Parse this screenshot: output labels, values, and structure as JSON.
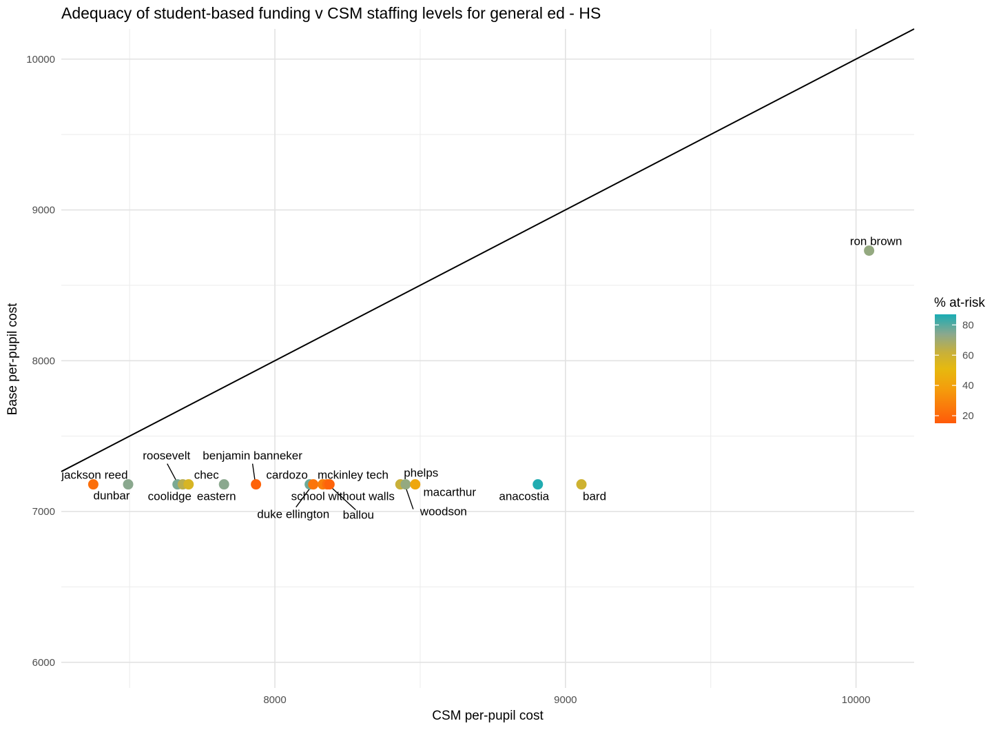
{
  "chart_data": {
    "type": "scatter",
    "title": "Adequacy of student-based funding v CSM staffing levels for general ed - HS",
    "xlabel": "CSM per-pupil cost",
    "ylabel": "Base per-pupil cost",
    "xlim": [
      7265,
      10200
    ],
    "ylim": [
      5830,
      10200
    ],
    "x_ticks": [
      8000,
      9000,
      10000
    ],
    "y_ticks": [
      6000,
      7000,
      8000,
      9000,
      10000
    ],
    "reference_line": "y = x",
    "legend": {
      "title": "% at-risk",
      "ticks": [
        20,
        40,
        60,
        80
      ],
      "range": [
        15,
        87
      ],
      "position": "right"
    },
    "points": [
      {
        "name": "jackson reed",
        "x": 7375,
        "y": 7180,
        "at_risk": 22
      },
      {
        "name": "dunbar",
        "x": 7495,
        "y": 7180,
        "at_risk": 72
      },
      {
        "name": "roosevelt",
        "x": 7665,
        "y": 7180,
        "at_risk": 74
      },
      {
        "name": "coolidge",
        "x": 7683,
        "y": 7180,
        "at_risk": 63
      },
      {
        "name": "chec",
        "x": 7703,
        "y": 7180,
        "at_risk": 55
      },
      {
        "name": "eastern",
        "x": 7825,
        "y": 7180,
        "at_risk": 72
      },
      {
        "name": "benjamin banneker",
        "x": 7935,
        "y": 7180,
        "at_risk": 18
      },
      {
        "name": "cardozo",
        "x": 8120,
        "y": 7180,
        "at_risk": 76
      },
      {
        "name": "duke ellington",
        "x": 8132,
        "y": 7180,
        "at_risk": 24
      },
      {
        "name": "school without walls",
        "x": 8165,
        "y": 7180,
        "at_risk": 28
      },
      {
        "name": "mckinley tech",
        "x": 8180,
        "y": 7180,
        "at_risk": 22
      },
      {
        "name": "ballou",
        "x": 8188,
        "y": 7180,
        "at_risk": 18
      },
      {
        "name": "phelps",
        "x": 8432,
        "y": 7180,
        "at_risk": 60
      },
      {
        "name": "woodson",
        "x": 8450,
        "y": 7180,
        "at_risk": 70
      },
      {
        "name": "macarthur",
        "x": 8483,
        "y": 7180,
        "at_risk": 42
      },
      {
        "name": "anacostia",
        "x": 8905,
        "y": 7180,
        "at_risk": 86
      },
      {
        "name": "bard",
        "x": 9055,
        "y": 7180,
        "at_risk": 58
      },
      {
        "name": "ron brown",
        "x": 10045,
        "y": 8730,
        "at_risk": 70
      }
    ]
  }
}
